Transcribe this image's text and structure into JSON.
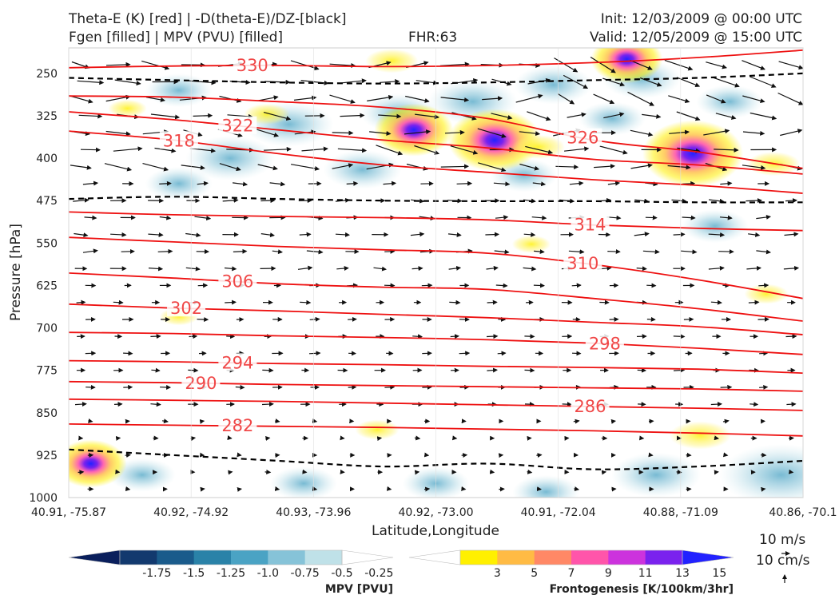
{
  "header": {
    "title_line1": "Theta-E (K) [red] | -D(theta-E)/DZ-[black]",
    "title_line2": "Fgen [filled] | MPV (PVU) [filled]",
    "fhr": "FHR:63",
    "init": "Init: 12/03/2009 @ 00:00 UTC",
    "valid": "Valid: 12/05/2009 @ 15:00 UTC"
  },
  "chart_data": {
    "type": "cross-section",
    "ylabel": "Pressure [hPa]",
    "xlabel": "Latitude,Longitude",
    "y_inverted": true,
    "ylim": [
      1000,
      205
    ],
    "yticks": [
      "250",
      "325",
      "400",
      "475",
      "550",
      "625",
      "700",
      "775",
      "850",
      "925",
      "1000"
    ],
    "xticks": [
      "40.91, -75.87",
      "40.92, -74.92",
      "40.93, -73.96",
      "40.92, -73.00",
      "40.91, -72.04",
      "40.88, -71.09",
      "40.86, -70.1"
    ],
    "theta_e_contours": [
      {
        "label": "330",
        "p": [
          240,
          237,
          236,
          238,
          236,
          231,
          222,
          209
        ]
      },
      {
        "label": "326",
        "p": [
          290,
          292,
          300,
          310,
          330,
          368,
          389,
          418
        ]
      },
      {
        "label": "322",
        "p": [
          318,
          332,
          350,
          368,
          382,
          402,
          412,
          428
        ]
      },
      {
        "label": "318",
        "p": [
          352,
          368,
          392,
          412,
          425,
          438,
          448,
          462
        ]
      },
      {
        "label": "314",
        "p": [
          495,
          500,
          503,
          505,
          509,
          518,
          524,
          528
        ]
      },
      {
        "label": "310",
        "p": [
          540,
          548,
          556,
          562,
          568,
          588,
          615,
          648
        ]
      },
      {
        "label": "306",
        "p": [
          603,
          612,
          622,
          628,
          632,
          648,
          666,
          688
        ]
      },
      {
        "label": "302",
        "p": [
          658,
          665,
          670,
          676,
          682,
          690,
          698,
          712
        ]
      },
      {
        "label": "298",
        "p": [
          708,
          710,
          714,
          717,
          721,
          727,
          736,
          747
        ]
      },
      {
        "label": "294",
        "p": [
          758,
          760,
          763,
          765,
          768,
          770,
          773,
          780
        ]
      },
      {
        "label": "290",
        "p": [
          795,
          797,
          800,
          802,
          804,
          806,
          808,
          812
        ]
      },
      {
        "label": "286",
        "p": [
          826,
          828,
          830,
          833,
          836,
          839,
          842,
          846
        ]
      },
      {
        "label": "282",
        "p": [
          870,
          872,
          874,
          876,
          879,
          882,
          886,
          891
        ]
      }
    ],
    "stability_contours_dashed": [
      {
        "p": [
          915,
          925,
          935,
          945,
          940,
          950,
          945,
          935
        ]
      },
      {
        "p": [
          472,
          468,
          472,
          475,
          476,
          476,
          478,
          478
        ]
      },
      {
        "p": [
          258,
          262,
          266,
          268,
          266,
          262,
          258,
          250
        ]
      }
    ],
    "fgen_colorbar": {
      "label": "Frontogenesis [K/100km/3hr]",
      "ticks": [
        "3",
        "5",
        "7",
        "9",
        "11",
        "13",
        "15"
      ],
      "colors": [
        "#ffffff",
        "#fff000",
        "#ffbb44",
        "#ff8866",
        "#ff55aa",
        "#cc33dd",
        "#7a22ee",
        "#2222ff"
      ]
    },
    "mpv_colorbar": {
      "label": "MPV [PVU]",
      "ticks": [
        "-1.75",
        "-1.5",
        "-1.25",
        "-1.0",
        "-0.75",
        "-0.5",
        "-0.25"
      ],
      "colors": [
        "#0a1f5c",
        "#12396e",
        "#1a5b8b",
        "#2a82a8",
        "#4aa3c4",
        "#86c3d8",
        "#bfe1e8",
        "#ffffff"
      ]
    },
    "wind_key": {
      "h_label": "10 m/s",
      "v_label": "10 cm/s"
    },
    "fgen_blobs": [
      {
        "x": 0.08,
        "p": 312,
        "s": 2.2
      },
      {
        "x": 0.27,
        "p": 322,
        "s": 2.6
      },
      {
        "x": 0.44,
        "p": 228,
        "s": 3
      },
      {
        "x": 0.47,
        "p": 350,
        "s": 5.5
      },
      {
        "x": 0.58,
        "p": 368,
        "s": 6.5
      },
      {
        "x": 0.64,
        "p": 380,
        "s": 3
      },
      {
        "x": 0.76,
        "p": 225,
        "s": 5
      },
      {
        "x": 0.85,
        "p": 392,
        "s": 7
      },
      {
        "x": 0.96,
        "p": 410,
        "s": 3
      },
      {
        "x": 0.42,
        "p": 880,
        "s": 2.5
      },
      {
        "x": 0.03,
        "p": 940,
        "s": 5
      },
      {
        "x": 0.86,
        "p": 890,
        "s": 3.5
      },
      {
        "x": 0.95,
        "p": 640,
        "s": 2.5
      },
      {
        "x": 0.15,
        "p": 680,
        "s": 2.2
      },
      {
        "x": 0.63,
        "p": 552,
        "s": 2.2
      }
    ],
    "mpv_blobs": [
      {
        "x": 0.15,
        "p": 280,
        "s": 3
      },
      {
        "x": 0.3,
        "p": 340,
        "s": 4
      },
      {
        "x": 0.45,
        "p": 320,
        "s": 3.5
      },
      {
        "x": 0.55,
        "p": 300,
        "s": 4
      },
      {
        "x": 0.66,
        "p": 270,
        "s": 3.5
      },
      {
        "x": 0.74,
        "p": 330,
        "s": 3
      },
      {
        "x": 0.78,
        "p": 260,
        "s": 3.5
      },
      {
        "x": 0.9,
        "p": 300,
        "s": 3
      },
      {
        "x": 0.22,
        "p": 400,
        "s": 4
      },
      {
        "x": 0.4,
        "p": 420,
        "s": 3.5
      },
      {
        "x": 0.62,
        "p": 430,
        "s": 3
      },
      {
        "x": 0.97,
        "p": 960,
        "s": 5.5
      },
      {
        "x": 0.8,
        "p": 960,
        "s": 4
      },
      {
        "x": 0.65,
        "p": 990,
        "s": 3
      },
      {
        "x": 0.5,
        "p": 975,
        "s": 3
      },
      {
        "x": 0.32,
        "p": 975,
        "s": 3
      },
      {
        "x": 0.1,
        "p": 960,
        "s": 3
      },
      {
        "x": 0.88,
        "p": 520,
        "s": 3
      },
      {
        "x": 0.15,
        "p": 445,
        "s": 3
      }
    ]
  }
}
